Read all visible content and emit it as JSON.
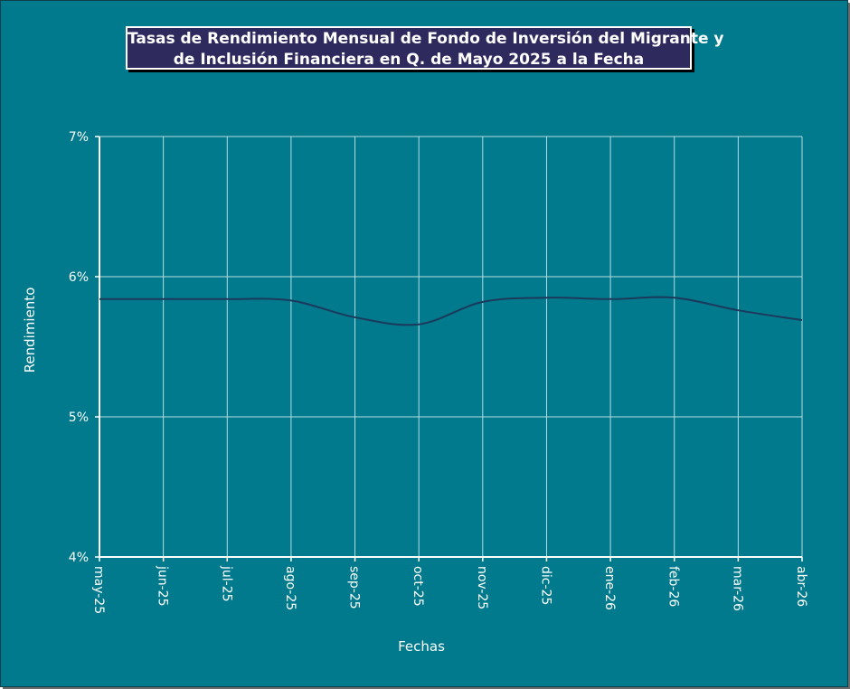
{
  "chart_data": {
    "type": "line",
    "title": "Tasas de Rendimiento Mensual de Fondo de Inversión del Migrante y de Inclusión Financiera en Q. de Mayo 2025 a la Fecha",
    "title_lines": [
      "Tasas de Rendimiento Mensual de Fondo de Inversión del Migrante y",
      "de Inclusión Financiera en Q. de Mayo 2025 a la Fecha"
    ],
    "xlabel": "Fechas",
    "ylabel": "Rendimiento",
    "categories": [
      "may-25",
      "jun-25",
      "jul-25",
      "ago-25",
      "sep-25",
      "oct-25",
      "nov-25",
      "dic-25",
      "ene-26",
      "feb-26",
      "mar-26",
      "abr-26"
    ],
    "series": [
      {
        "values": [
          5.84,
          5.84,
          5.84,
          5.83,
          5.71,
          5.66,
          5.82,
          5.85,
          5.84,
          5.85,
          5.76,
          5.69
        ]
      }
    ],
    "ylim": [
      4,
      7
    ],
    "yticks": [
      4,
      5,
      6,
      7
    ],
    "ytick_labels": [
      "4%",
      "5%",
      "6%",
      "7%"
    ],
    "grid": true,
    "colors": {
      "background": "#007a8c",
      "line": "#1b3a5c",
      "grid": "#b8dde3",
      "title_box": "#2e2a5e"
    }
  }
}
